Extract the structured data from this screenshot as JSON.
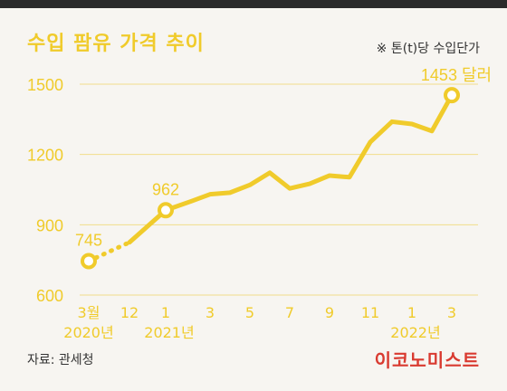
{
  "header": {
    "title": "수입 팜유 가격 추이",
    "unit_note": "※ 톤(t)당 수입단가"
  },
  "footer": {
    "source": "자료: 관세청",
    "brand": "이코노미스트"
  },
  "colors": {
    "line": "#f0cb2b",
    "tick_text": "#f0cb2b",
    "category_text": "#f0cb2b",
    "grid": "#f1dd8a",
    "brand": "#d93a30",
    "text": "#333333"
  },
  "chart_data": {
    "type": "line",
    "title": "수입 팜유 가격 추이",
    "ylabel": "",
    "xlabel": "",
    "ylim": [
      600,
      1500
    ],
    "yticks": [
      600,
      900,
      1200,
      1500
    ],
    "grid": true,
    "x": [
      "2020-03",
      "2020-12",
      "2021-01",
      "2021-02",
      "2021-03",
      "2021-04",
      "2021-05",
      "2021-06",
      "2021-07",
      "2021-08",
      "2021-09",
      "2021-10",
      "2021-11",
      "2021-12",
      "2022-01",
      "2022-02",
      "2022-03"
    ],
    "values": [
      745,
      825,
      962,
      1000,
      1030,
      1037,
      1070,
      1122,
      1055,
      1075,
      1110,
      1103,
      1253,
      1340,
      1330,
      1300,
      1453
    ],
    "dotted_segment": [
      "2020-03",
      "2020-12"
    ],
    "tick_labels": [
      {
        "x": "2020-03",
        "label": "3월"
      },
      {
        "x": "2020-12",
        "label": "12"
      },
      {
        "x": "2021-01",
        "label": "1"
      },
      {
        "x": "2021-03",
        "label": "3"
      },
      {
        "x": "2021-05",
        "label": "5"
      },
      {
        "x": "2021-07",
        "label": "7"
      },
      {
        "x": "2021-09",
        "label": "9"
      },
      {
        "x": "2021-11",
        "label": "11"
      },
      {
        "x": "2022-01",
        "label": "1"
      },
      {
        "x": "2022-03",
        "label": "3"
      }
    ],
    "year_labels": [
      {
        "x": "2020-03",
        "label": "2020년"
      },
      {
        "x": "2021-01",
        "label": "2021년"
      },
      {
        "x": "2022-01",
        "label": "2022년"
      }
    ],
    "data_labels": [
      {
        "x": "2020-03",
        "value": 745,
        "label": "745"
      },
      {
        "x": "2021-01",
        "value": 962,
        "label": "962"
      },
      {
        "x": "2022-03",
        "value": 1453,
        "label": "1453 달러"
      }
    ]
  }
}
